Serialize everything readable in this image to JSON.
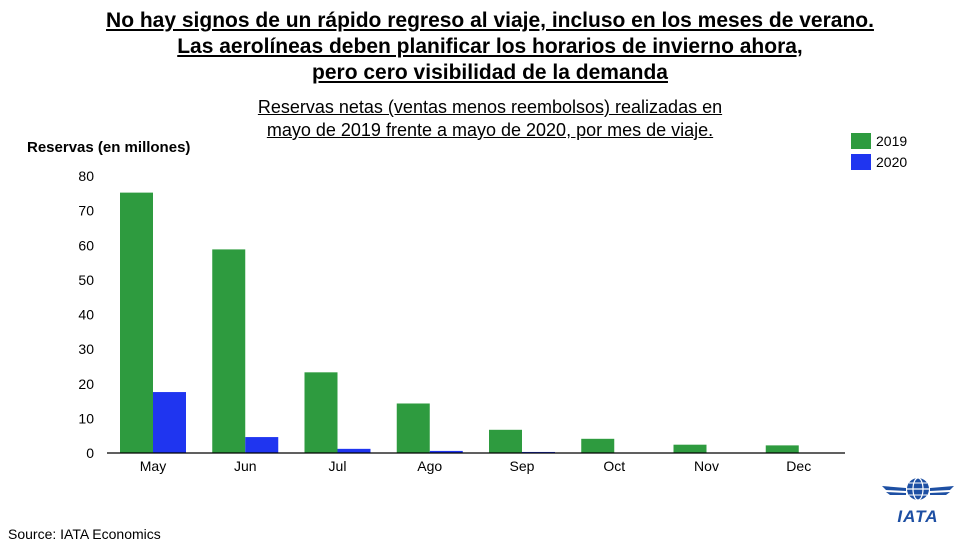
{
  "title_lines": [
    "No hay signos de un rápido regreso al viaje, incluso en los meses de verano.",
    "Las aerolíneas deben planificar los horarios de invierno ahora,",
    "pero cero visibilidad de la demanda"
  ],
  "subtitle_lines": [
    "Reservas netas (ventas menos reembolsos) realizadas en",
    "mayo de 2019 frente a mayo de 2020, por mes de viaje."
  ],
  "source": "Source: IATA Economics",
  "logo_text": "IATA",
  "colors": {
    "2019": "#2e9b3f",
    "2020": "#1f35f0"
  },
  "chart_data": {
    "type": "bar",
    "title": "Reservas netas (ventas menos reembolsos) realizadas en mayo de 2019 frente a mayo de 2020, por mes de viaje.",
    "ylabel": "Reservas (en millones)",
    "xlabel": "",
    "categories": [
      "May",
      "Jun",
      "Jul",
      "Ago",
      "Sep",
      "Oct",
      "Nov",
      "Dec"
    ],
    "series": [
      {
        "name": "2019",
        "values": [
          75.2,
          58.8,
          23.3,
          14.3,
          6.7,
          4.1,
          2.4,
          2.2
        ]
      },
      {
        "name": "2020",
        "values": [
          17.6,
          4.6,
          1.2,
          0.6,
          0.3,
          0.1,
          0.1,
          0.1
        ]
      }
    ],
    "ylim": [
      0,
      80
    ],
    "yticks": [
      0,
      10,
      20,
      30,
      40,
      50,
      60,
      70,
      80
    ],
    "grid": false,
    "legend": "top-right"
  }
}
